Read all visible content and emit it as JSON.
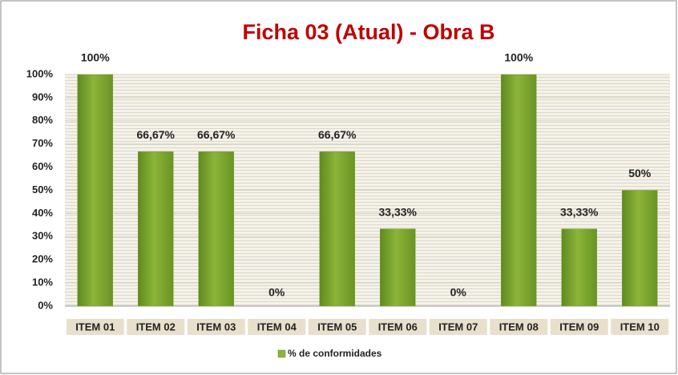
{
  "chart_data": {
    "type": "bar",
    "title": "Ficha 03 (Atual) - Obra B",
    "categories": [
      "ITEM 01",
      "ITEM 02",
      "ITEM 03",
      "ITEM 04",
      "ITEM 05",
      "ITEM 06",
      "ITEM 07",
      "ITEM 08",
      "ITEM 09",
      "ITEM 10"
    ],
    "series": [
      {
        "name": "% de conformidades",
        "color": "#8cb43a",
        "values": [
          100,
          66.67,
          66.67,
          0,
          66.67,
          33.33,
          0,
          100,
          33.33,
          50
        ],
        "value_labels": [
          "100%",
          "66,67%",
          "66,67%",
          "0%",
          "66,67%",
          "33,33%",
          "0%",
          "100%",
          "33,33%",
          "50%"
        ]
      }
    ],
    "ylim": [
      0,
      100
    ],
    "yticks": [
      {
        "value": 0,
        "label": "0%"
      },
      {
        "value": 10,
        "label": "10%"
      },
      {
        "value": 20,
        "label": "20%"
      },
      {
        "value": 30,
        "label": "30%"
      },
      {
        "value": 40,
        "label": "40%"
      },
      {
        "value": 50,
        "label": "50%"
      },
      {
        "value": 60,
        "label": "60%"
      },
      {
        "value": 70,
        "label": "70%"
      },
      {
        "value": 80,
        "label": "80%"
      },
      {
        "value": 90,
        "label": "90%"
      },
      {
        "value": 100,
        "label": "100%"
      }
    ],
    "grid": true,
    "legend": "bottom"
  }
}
